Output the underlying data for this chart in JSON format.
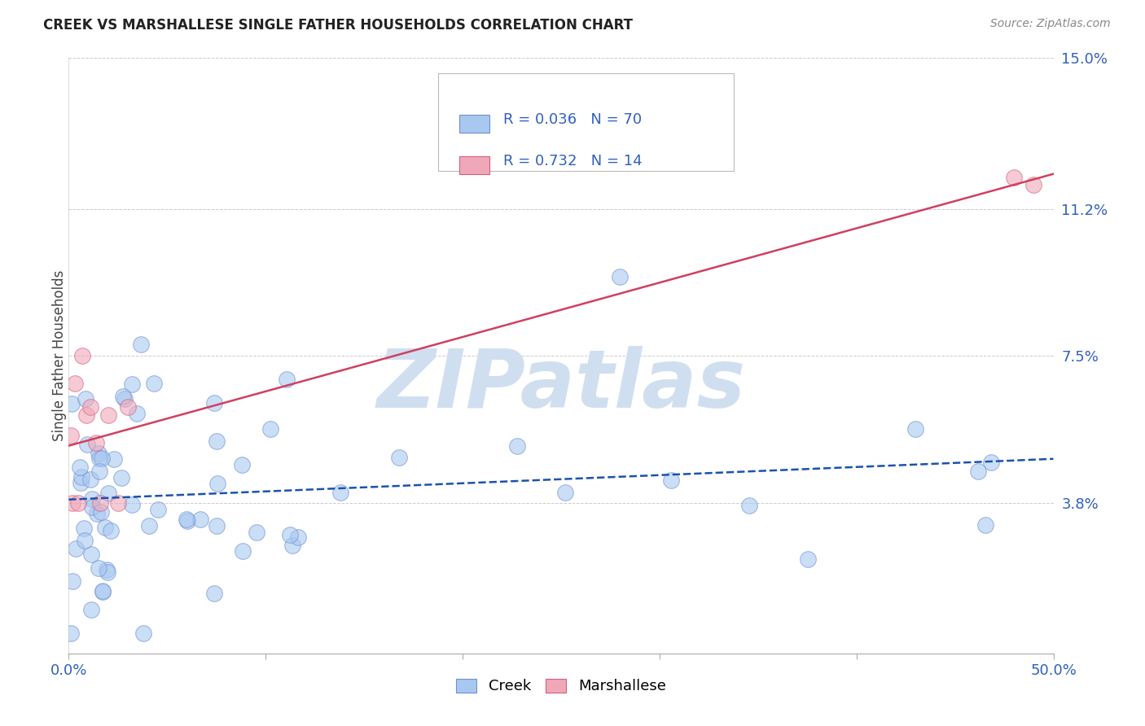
{
  "title": "CREEK VS MARSHALLESE SINGLE FATHER HOUSEHOLDS CORRELATION CHART",
  "source": "Source: ZipAtlas.com",
  "ylabel": "Single Father Households",
  "xlim": [
    0.0,
    0.5
  ],
  "ylim": [
    0.0,
    0.15
  ],
  "ytick_positions": [
    0.038,
    0.075,
    0.112,
    0.15
  ],
  "ytick_labels": [
    "3.8%",
    "7.5%",
    "11.2%",
    "15.0%"
  ],
  "creek_R": 0.036,
  "creek_N": 70,
  "marshallese_R": 0.732,
  "marshallese_N": 14,
  "creek_color": "#a8c8f0",
  "marshallese_color": "#f0a8b8",
  "creek_edge_color": "#7090d0",
  "marshallese_edge_color": "#d06080",
  "creek_line_color": "#1a52b0",
  "marshallese_line_color": "#d04060",
  "watermark_color": "#d0dff0",
  "background_color": "#ffffff",
  "grid_color": "#cccccc",
  "axis_label_color": "#3060c0",
  "title_color": "#222222",
  "source_color": "#888888"
}
